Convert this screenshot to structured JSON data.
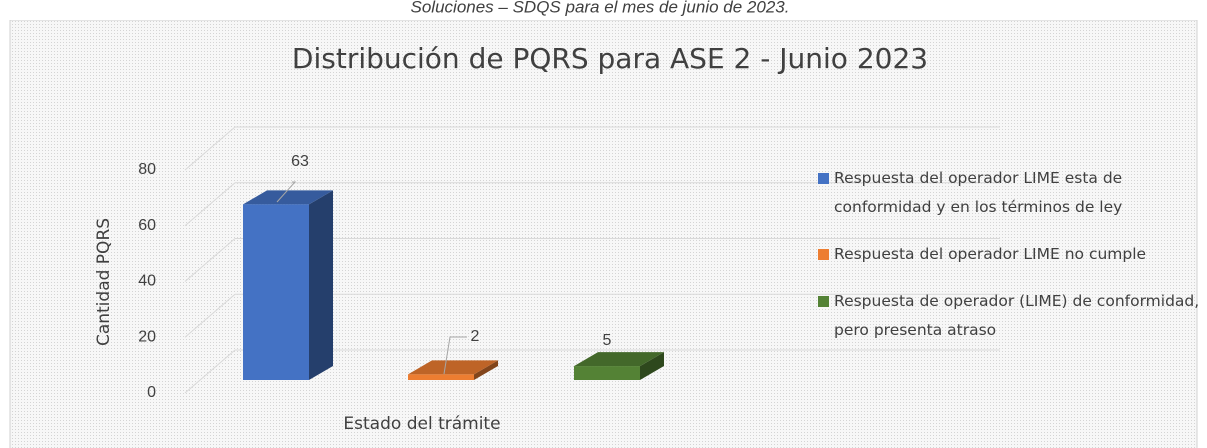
{
  "caption": "Soluciones – SDQS para el mes de junio de 2023.",
  "chart_data": {
    "type": "bar3d",
    "title": "Distribución de PQRS para ASE 2 - Junio 2023",
    "x_label": "Estado del trámite",
    "y_label": "Cantidad PQRS",
    "categories": [
      null
    ],
    "series": [
      {
        "name": "Respuesta del operador LIME esta de conformidad y en los términos de ley",
        "color": "#4472c4",
        "values": [
          63
        ]
      },
      {
        "name": "Respuesta del operador LIME no cumple",
        "color": "#ed7d31",
        "values": [
          2
        ]
      },
      {
        "name": "Respuesta de operador (LIME) de conformidad, pero presenta atraso",
        "color": "#548235",
        "values": [
          5
        ]
      }
    ],
    "ylim": [
      0,
      80
    ],
    "yticks": [
      0,
      20,
      40,
      60,
      80
    ],
    "grid": true,
    "legend": "right"
  }
}
